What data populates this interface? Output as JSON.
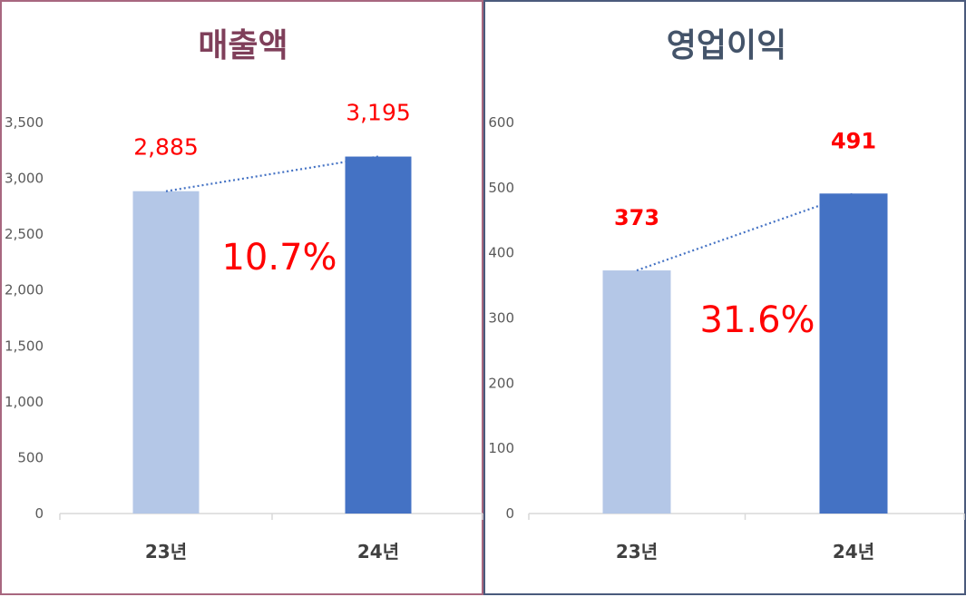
{
  "colors": {
    "bar_prev": "#b4c7e7",
    "bar_curr": "#4472c4",
    "trend": "#4472c4",
    "label": "#ff0000",
    "title_left": "#7f3f5a",
    "title_right": "#44546a"
  },
  "chart_data": [
    {
      "type": "bar",
      "title": "매출액",
      "categories": [
        "23년",
        "24년"
      ],
      "values": [
        2885,
        3195
      ],
      "value_labels": [
        "2,885",
        "3,195"
      ],
      "growth_label": "10.7%",
      "ylim": [
        0,
        3500
      ],
      "yticks": [
        0,
        500,
        1000,
        1500,
        2000,
        2500,
        3000,
        3500
      ],
      "ytick_labels": [
        "0",
        "500",
        "1,000",
        "1,500",
        "2,000",
        "2,500",
        "3,000",
        "3,500"
      ],
      "grid": false,
      "trend_line": "dotted"
    },
    {
      "type": "bar",
      "title": "영업이익",
      "categories": [
        "23년",
        "24년"
      ],
      "values": [
        373,
        491
      ],
      "value_labels": [
        "373",
        "491"
      ],
      "growth_label": "31.6%",
      "ylim": [
        0,
        600
      ],
      "yticks": [
        0,
        100,
        200,
        300,
        400,
        500,
        600
      ],
      "ytick_labels": [
        "0",
        "100",
        "200",
        "300",
        "400",
        "500",
        "600"
      ],
      "grid": false,
      "trend_line": "dotted"
    }
  ]
}
